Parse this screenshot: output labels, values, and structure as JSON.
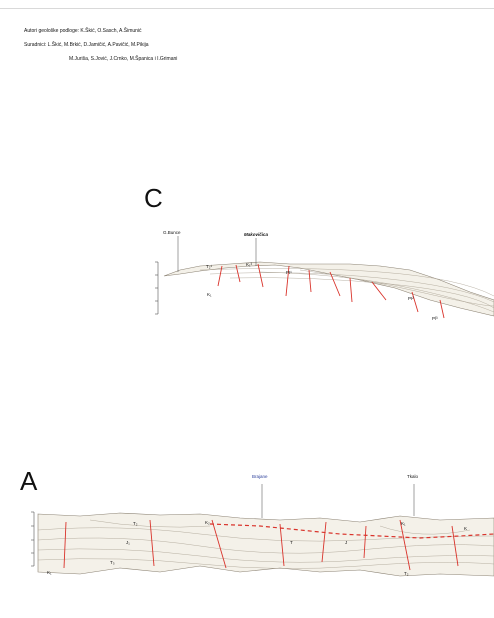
{
  "credits": {
    "line1": "Autori geološke podloge: K.Škić, O.Sasch, A.Šimunić",
    "line2": "Suradnici: L.Škić, M.Brkić, D.Jamičić, A.Pavičić, M.Pikija",
    "line3": "M.Juriša, S.Jović, J.Crnko, M.Španica i I.Grimani"
  },
  "section_c": {
    "letter": "C",
    "places": [
      "G.Bunce",
      "Makovičica"
    ],
    "unit_labels": [
      "T₂¹",
      "K₁",
      "PI¹",
      "K₁³",
      "PI²",
      "Pl³"
    ],
    "colors": {
      "fault": "#d9332b",
      "strata": "#9a8f80",
      "fill": "#f4f1e9"
    }
  },
  "section_a": {
    "letter": "A",
    "places": [
      "Brajane",
      "Tkalo"
    ],
    "unit_labels": [
      "K₁",
      "T₂",
      "J₁",
      "K₂",
      "T",
      "T₃",
      "J",
      "K₁",
      "T₂",
      "K"
    ],
    "colors": {
      "fault": "#d9332b",
      "strata": "#9a8f80",
      "fill": "#f4f1e9",
      "label_blue": "#2b3f9a"
    }
  }
}
